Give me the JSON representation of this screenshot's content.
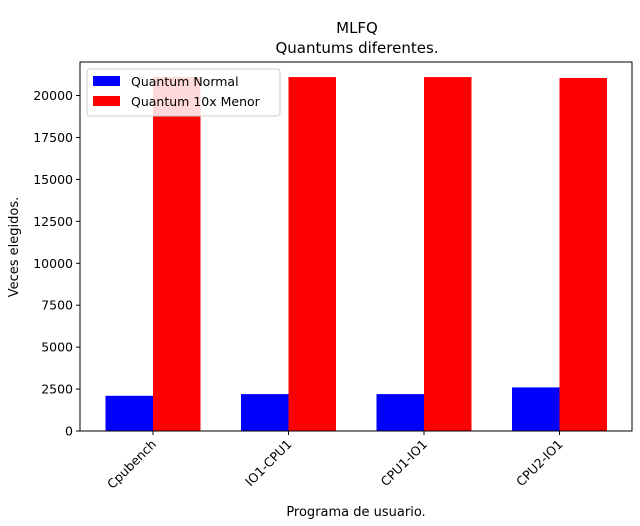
{
  "chart_data": {
    "type": "bar",
    "title": "MLFQ",
    "subtitle": "Quantums diferentes.",
    "xlabel": "Programa de usuario.",
    "ylabel": "Veces elegidos.",
    "categories": [
      "Cpubench",
      "IO1-CPU1",
      "CPU1-IO1",
      "CPU2-IO1"
    ],
    "series": [
      {
        "name": "Quantum Normal",
        "values": [
          2100,
          2200,
          2200,
          2600
        ],
        "color": "#0000ff"
      },
      {
        "name": "Quantum 10x Menor",
        "values": [
          21100,
          21100,
          21100,
          21050
        ],
        "color": "#ff0000"
      }
    ],
    "ylim": [
      0,
      22000
    ],
    "yticks": [
      0,
      2500,
      5000,
      7500,
      10000,
      12500,
      15000,
      17500,
      20000
    ],
    "grid": false,
    "legend_position": "top-left",
    "xtick_rotation": 45
  }
}
